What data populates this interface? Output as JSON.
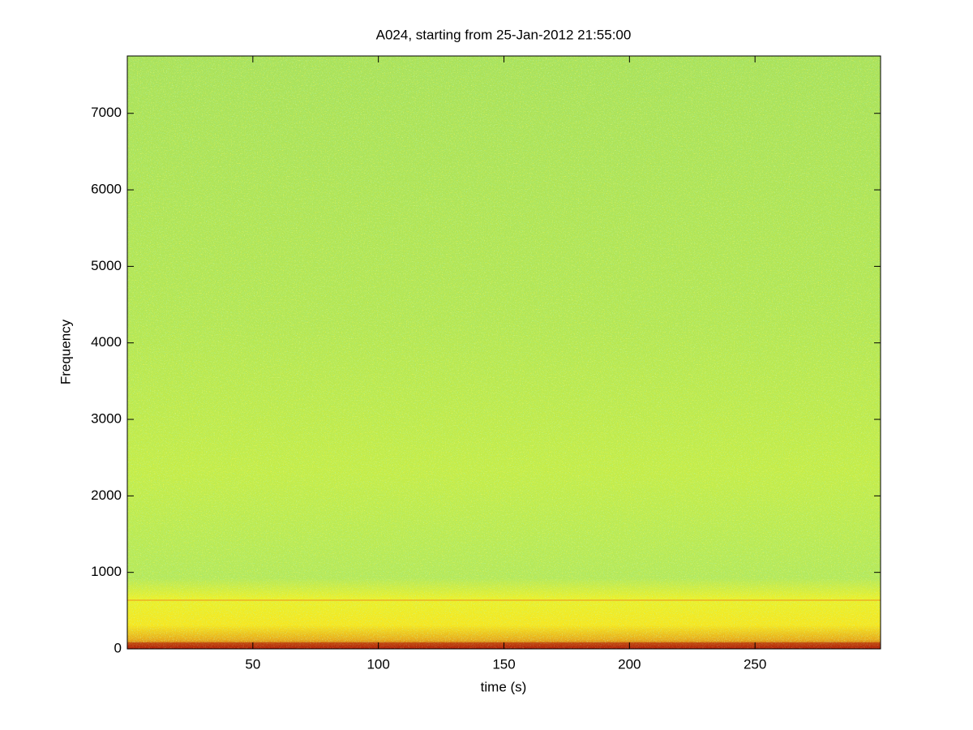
{
  "chart_data": {
    "type": "spectrogram",
    "title": "A024, starting from 25-Jan-2012 21:55:00",
    "xlabel": "time (s)",
    "ylabel": "Frequency",
    "xlim": [
      0,
      300
    ],
    "xticks": [
      50,
      100,
      150,
      200,
      250
    ],
    "ylim": [
      0,
      7750
    ],
    "yticks": [
      0,
      1000,
      2000,
      3000,
      4000,
      5000,
      6000,
      7000
    ]
  }
}
